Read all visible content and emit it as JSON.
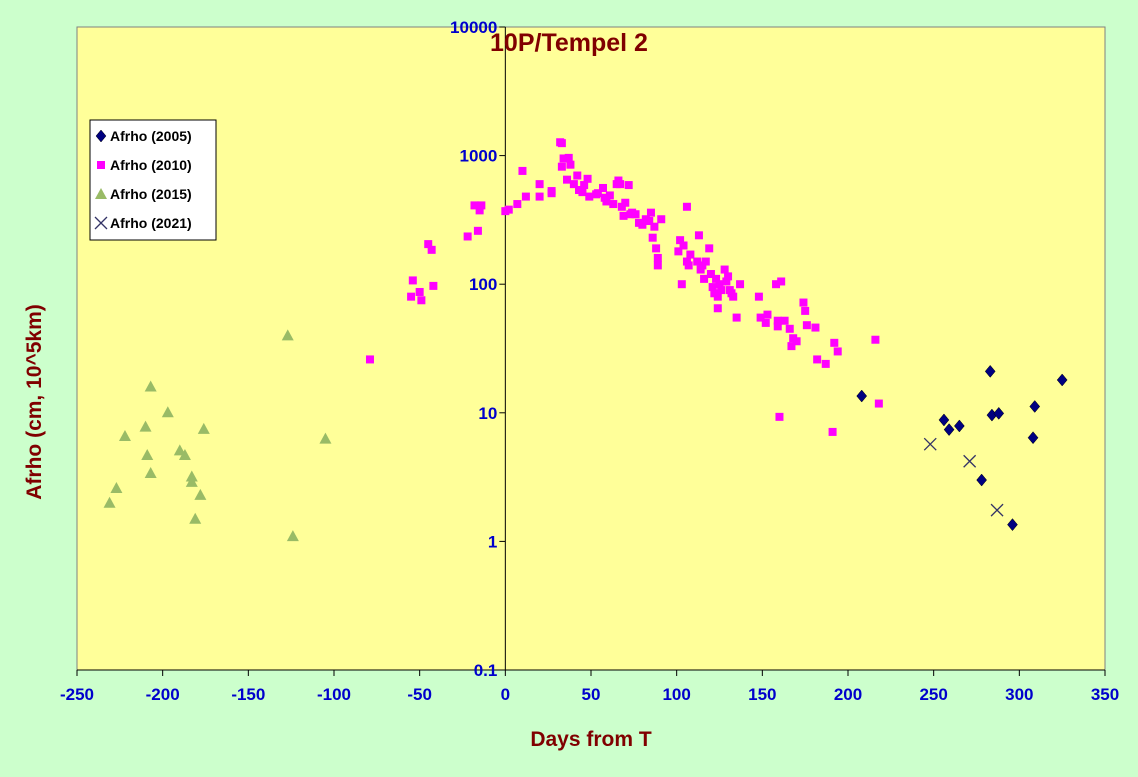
{
  "chart_data": {
    "type": "scatter",
    "title": "10P/Tempel 2",
    "xlabel": "Days from T",
    "ylabel": "Afrho (cm, 10^5km)",
    "xlim": [
      -250,
      350
    ],
    "ylim": [
      0.1,
      10000
    ],
    "yscale": "log",
    "grid": false,
    "legend_position": "top-left",
    "x_ticks": [
      "-250",
      "-200",
      "-150",
      "-100",
      "-50",
      "0",
      "50",
      "100",
      "150",
      "200",
      "250",
      "300",
      "350"
    ],
    "y_ticks": [
      "0.1",
      "1",
      "10",
      "100",
      "1000",
      "10000"
    ],
    "colors": {
      "plot_background": "#ffff99",
      "page_background": "#ccffcc",
      "tick_labels": "#0000cc",
      "titles": "#800000"
    },
    "series": [
      {
        "name": "Afrho (2005)",
        "marker": "diamond",
        "color": "#000080",
        "points": [
          [
            208,
            13.5
          ],
          [
            256,
            8.8
          ],
          [
            259,
            7.4
          ],
          [
            265,
            7.9
          ],
          [
            278,
            3.0
          ],
          [
            283,
            21
          ],
          [
            284,
            9.6
          ],
          [
            288,
            9.9
          ],
          [
            296,
            1.35
          ],
          [
            308,
            6.4
          ],
          [
            309,
            11.2
          ],
          [
            325,
            18
          ]
        ]
      },
      {
        "name": "Afrho (2010)",
        "marker": "square",
        "color": "#ff00ff",
        "points": [
          [
            -79,
            26
          ],
          [
            -55,
            80
          ],
          [
            -54,
            107
          ],
          [
            -50,
            87
          ],
          [
            -49,
            75
          ],
          [
            -45,
            205
          ],
          [
            -43,
            185
          ],
          [
            -42,
            97
          ],
          [
            -22,
            235
          ],
          [
            -18,
            410
          ],
          [
            -16,
            260
          ],
          [
            -15,
            375
          ],
          [
            -14,
            410
          ],
          [
            0,
            370
          ],
          [
            2,
            380
          ],
          [
            7,
            420
          ],
          [
            10,
            760
          ],
          [
            12,
            480
          ],
          [
            20,
            600
          ],
          [
            20,
            480
          ],
          [
            27,
            510
          ],
          [
            27,
            530
          ],
          [
            32,
            1270
          ],
          [
            33,
            1250
          ],
          [
            33,
            820
          ],
          [
            34,
            950
          ],
          [
            36,
            650
          ],
          [
            37,
            960
          ],
          [
            38,
            850
          ],
          [
            40,
            600
          ],
          [
            42,
            700
          ],
          [
            43,
            540
          ],
          [
            45,
            520
          ],
          [
            46,
            590
          ],
          [
            48,
            660
          ],
          [
            49,
            480
          ],
          [
            53,
            500
          ],
          [
            54,
            510
          ],
          [
            57,
            560
          ],
          [
            58,
            470
          ],
          [
            59,
            440
          ],
          [
            61,
            490
          ],
          [
            63,
            420
          ],
          [
            65,
            600
          ],
          [
            66,
            640
          ],
          [
            67,
            600
          ],
          [
            68,
            400
          ],
          [
            69,
            340
          ],
          [
            70,
            430
          ],
          [
            72,
            590
          ],
          [
            73,
            350
          ],
          [
            74,
            360
          ],
          [
            76,
            350
          ],
          [
            78,
            300
          ],
          [
            80,
            290
          ],
          [
            82,
            320
          ],
          [
            84,
            310
          ],
          [
            85,
            360
          ],
          [
            86,
            230
          ],
          [
            87,
            280
          ],
          [
            88,
            190
          ],
          [
            89,
            160
          ],
          [
            89,
            140
          ],
          [
            91,
            320
          ],
          [
            101,
            180
          ],
          [
            102,
            220
          ],
          [
            103,
            100
          ],
          [
            104,
            200
          ],
          [
            106,
            150
          ],
          [
            106,
            400
          ],
          [
            107,
            140
          ],
          [
            108,
            170
          ],
          [
            112,
            150
          ],
          [
            113,
            240
          ],
          [
            114,
            130
          ],
          [
            115,
            140
          ],
          [
            116,
            110
          ],
          [
            117,
            150
          ],
          [
            119,
            190
          ],
          [
            120,
            120
          ],
          [
            121,
            95
          ],
          [
            122,
            85
          ],
          [
            123,
            110
          ],
          [
            124,
            80
          ],
          [
            124,
            65
          ],
          [
            125,
            100
          ],
          [
            126,
            90
          ],
          [
            128,
            130
          ],
          [
            129,
            105
          ],
          [
            130,
            115
          ],
          [
            131,
            90
          ],
          [
            132,
            85
          ],
          [
            133,
            80
          ],
          [
            135,
            55
          ],
          [
            137,
            100
          ],
          [
            148,
            80
          ],
          [
            149,
            55
          ],
          [
            152,
            50
          ],
          [
            153,
            58
          ],
          [
            158,
            100
          ],
          [
            159,
            47
          ],
          [
            159,
            52
          ],
          [
            160,
            9.3
          ],
          [
            161,
            105
          ],
          [
            163,
            52
          ],
          [
            166,
            45
          ],
          [
            167,
            33
          ],
          [
            168,
            38
          ],
          [
            170,
            36
          ],
          [
            174,
            72
          ],
          [
            175,
            62
          ],
          [
            176,
            48
          ],
          [
            181,
            46
          ],
          [
            182,
            26
          ],
          [
            187,
            24
          ],
          [
            191,
            7.1
          ],
          [
            192,
            35
          ],
          [
            194,
            30
          ],
          [
            216,
            37
          ],
          [
            218,
            11.8
          ]
        ]
      },
      {
        "name": "Afrho (2015)",
        "marker": "triangle",
        "color": "#99bb66",
        "points": [
          [
            -231,
            2.0
          ],
          [
            -227,
            2.6
          ],
          [
            -222,
            6.6
          ],
          [
            -210,
            7.8
          ],
          [
            -209,
            4.7
          ],
          [
            -207,
            16
          ],
          [
            -207,
            3.4
          ],
          [
            -197,
            10.1
          ],
          [
            -190,
            5.1
          ],
          [
            -187,
            4.7
          ],
          [
            -183,
            3.2
          ],
          [
            -183,
            2.9
          ],
          [
            -181,
            1.5
          ],
          [
            -178,
            2.3
          ],
          [
            -176,
            7.5
          ],
          [
            -127,
            40
          ],
          [
            -124,
            1.1
          ],
          [
            -105,
            6.3
          ]
        ]
      },
      {
        "name": "Afrho (2021)",
        "marker": "x",
        "color": "#333366",
        "points": [
          [
            248,
            5.7
          ],
          [
            271,
            4.2
          ],
          [
            287,
            1.75
          ]
        ]
      }
    ]
  }
}
